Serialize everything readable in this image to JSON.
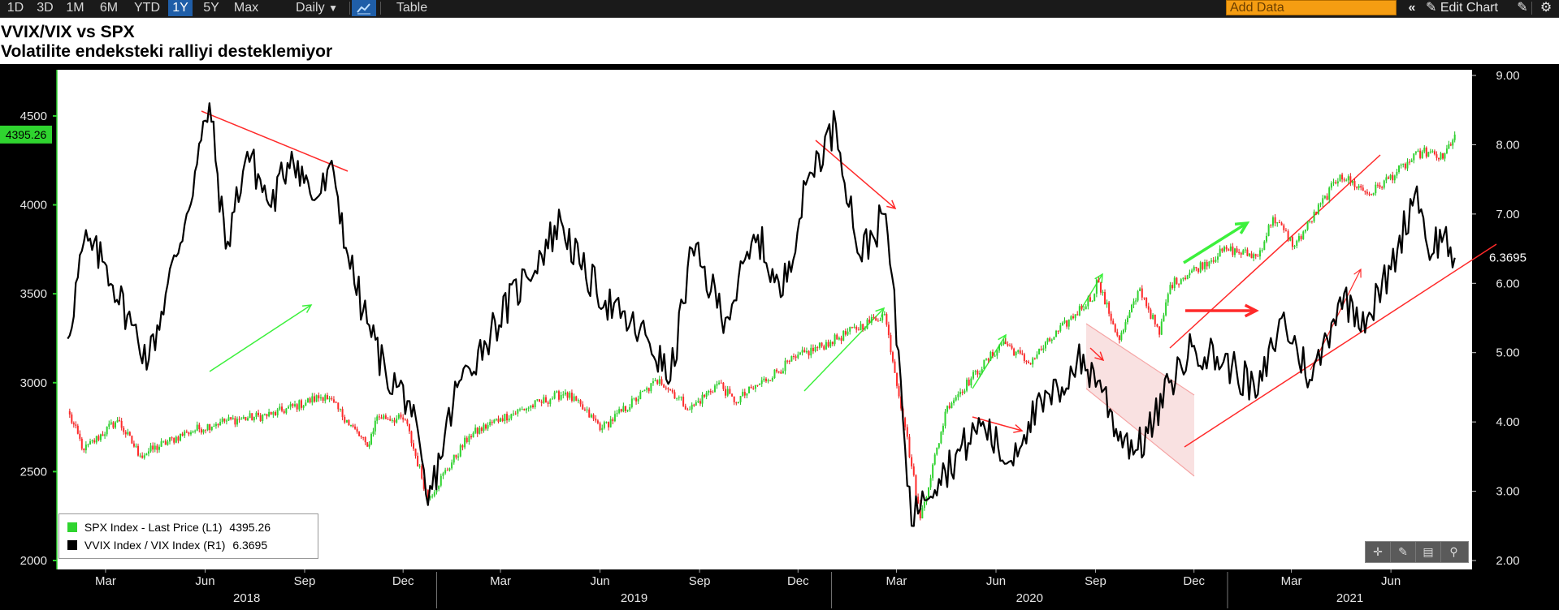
{
  "toolbar": {
    "ranges": [
      "1D",
      "3D",
      "1M",
      "6M",
      "YTD",
      "1Y",
      "5Y",
      "Max"
    ],
    "active_range": "1Y",
    "interval": "Daily",
    "interval_icon": "caret-down-icon",
    "chart_type_icon": "line-chart-icon",
    "table_label": "Table",
    "add_data_placeholder": "Add Data",
    "collapse_icon": "double-chevron-left-icon",
    "edit_chart_label": "Edit Chart",
    "edit_icon": "pencil-icon",
    "settings_icon": "gear-icon"
  },
  "chart_data": {
    "type": "line",
    "title": "VVIX/VIX vs SPX",
    "subtitle": "Volatilite endeksteki ralliyi desteklemiyor",
    "x_month_labels": [
      "Mar",
      "Jun",
      "Sep",
      "Dec",
      "Mar",
      "Jun",
      "Sep",
      "Dec",
      "Mar",
      "Jun",
      "Sep",
      "Dec",
      "Mar",
      "Jun"
    ],
    "x_year_labels": [
      "2018",
      "2019",
      "2020",
      "2021"
    ],
    "left_axis": {
      "ylim": [
        2000,
        4600
      ],
      "ticks": [
        "4500",
        "4000",
        "3500",
        "3000",
        "2500",
        "2000"
      ]
    },
    "right_axis": {
      "ylim": [
        2.0,
        9.0
      ],
      "ticks": [
        "9.00",
        "8.00",
        "7.00",
        "6.00",
        "5.00",
        "4.00",
        "3.00",
        "2.00"
      ]
    },
    "last_values": {
      "spx": "4395.26",
      "ratio": "6.3695"
    },
    "series": [
      {
        "name": "SPX Index - Last Price (L1)",
        "last": "4395.26",
        "axis": "left",
        "color": "#2fd42f",
        "points": [
          [
            "2018-01-25",
            2840
          ],
          [
            "2018-02-09",
            2620
          ],
          [
            "2018-03-12",
            2790
          ],
          [
            "2018-04-02",
            2590
          ],
          [
            "2018-05-15",
            2720
          ],
          [
            "2018-06-15",
            2780
          ],
          [
            "2018-08-01",
            2820
          ],
          [
            "2018-09-20",
            2930
          ],
          [
            "2018-10-10",
            2790
          ],
          [
            "2018-10-29",
            2640
          ],
          [
            "2018-11-07",
            2810
          ],
          [
            "2018-12-03",
            2790
          ],
          [
            "2018-12-24",
            2350
          ],
          [
            "2019-01-31",
            2700
          ],
          [
            "2019-03-01",
            2800
          ],
          [
            "2019-04-30",
            2945
          ],
          [
            "2019-06-03",
            2745
          ],
          [
            "2019-07-26",
            3020
          ],
          [
            "2019-08-23",
            2850
          ],
          [
            "2019-09-19",
            3000
          ],
          [
            "2019-10-03",
            2890
          ],
          [
            "2019-11-29",
            3140
          ],
          [
            "2019-12-31",
            3230
          ],
          [
            "2020-02-19",
            3386
          ],
          [
            "2020-03-09",
            2750
          ],
          [
            "2020-03-23",
            2237
          ],
          [
            "2020-04-17",
            2870
          ],
          [
            "2020-06-08",
            3230
          ],
          [
            "2020-07-01",
            3110
          ],
          [
            "2020-08-31",
            3500
          ],
          [
            "2020-09-02",
            3580
          ],
          [
            "2020-09-23",
            3240
          ],
          [
            "2020-10-12",
            3530
          ],
          [
            "2020-10-30",
            3270
          ],
          [
            "2020-11-09",
            3550
          ],
          [
            "2020-12-31",
            3750
          ],
          [
            "2021-01-29",
            3710
          ],
          [
            "2021-02-12",
            3930
          ],
          [
            "2021-03-04",
            3770
          ],
          [
            "2021-04-15",
            4170
          ],
          [
            "2021-05-12",
            4060
          ],
          [
            "2021-06-30",
            4300
          ],
          [
            "2021-07-19",
            4260
          ],
          [
            "2021-07-30",
            4395.26
          ]
        ]
      },
      {
        "name": "VVIX Index / VIX Index (R1)",
        "last": "6.3695",
        "axis": "right",
        "color": "#000000",
        "points": [
          [
            "2018-01-25",
            5.2
          ],
          [
            "2018-02-09",
            6.6
          ],
          [
            "2018-02-28",
            6.3
          ],
          [
            "2018-03-25",
            5.4
          ],
          [
            "2018-04-10",
            4.9
          ],
          [
            "2018-05-15",
            7.0
          ],
          [
            "2018-06-05",
            8.6
          ],
          [
            "2018-06-20",
            6.5
          ],
          [
            "2018-07-10",
            7.9
          ],
          [
            "2018-08-01",
            7.1
          ],
          [
            "2018-08-20",
            7.9
          ],
          [
            "2018-09-10",
            7.2
          ],
          [
            "2018-09-28",
            7.6
          ],
          [
            "2018-10-11",
            6.4
          ],
          [
            "2018-10-25",
            5.6
          ],
          [
            "2018-11-15",
            4.7
          ],
          [
            "2018-12-07",
            4.3
          ],
          [
            "2018-12-24",
            2.8
          ],
          [
            "2019-01-20",
            4.5
          ],
          [
            "2019-02-20",
            5.3
          ],
          [
            "2019-03-25",
            6.1
          ],
          [
            "2019-04-26",
            6.9
          ],
          [
            "2019-05-15",
            6.2
          ],
          [
            "2019-06-20",
            5.5
          ],
          [
            "2019-07-15",
            5.2
          ],
          [
            "2019-08-05",
            4.6
          ],
          [
            "2019-08-25",
            6.5
          ],
          [
            "2019-09-25",
            5.5
          ],
          [
            "2019-10-25",
            6.7
          ],
          [
            "2019-11-15",
            5.8
          ],
          [
            "2019-12-12",
            7.6
          ],
          [
            "2020-01-05",
            8.3
          ],
          [
            "2020-01-27",
            6.4
          ],
          [
            "2020-02-20",
            7.0
          ],
          [
            "2020-03-05",
            4.6
          ],
          [
            "2020-03-15",
            2.5
          ],
          [
            "2020-03-25",
            3.0
          ],
          [
            "2020-04-15",
            3.3
          ],
          [
            "2020-05-20",
            4.0
          ],
          [
            "2020-06-11",
            3.4
          ],
          [
            "2020-07-01",
            4.0
          ],
          [
            "2020-08-01",
            4.5
          ],
          [
            "2020-08-15",
            4.9
          ],
          [
            "2020-09-05",
            4.6
          ],
          [
            "2020-09-20",
            3.9
          ],
          [
            "2020-10-10",
            3.6
          ],
          [
            "2020-10-25",
            4.0
          ],
          [
            "2020-11-10",
            4.6
          ],
          [
            "2020-12-01",
            5.1
          ],
          [
            "2021-01-05",
            4.8
          ],
          [
            "2021-01-29",
            4.4
          ],
          [
            "2021-02-20",
            5.5
          ],
          [
            "2021-03-20",
            4.6
          ],
          [
            "2021-04-15",
            5.8
          ],
          [
            "2021-05-10",
            5.5
          ],
          [
            "2021-06-01",
            6.2
          ],
          [
            "2021-06-25",
            7.4
          ],
          [
            "2021-07-05",
            6.5
          ],
          [
            "2021-07-20",
            6.7
          ],
          [
            "2021-07-30",
            6.3695
          ]
        ]
      }
    ],
    "legend_position": "bottom-left",
    "grid": false
  },
  "legend": {
    "spx_label": "SPX Index - Last Price (L1)",
    "spx_value": "4395.26",
    "ratio_label": "VVIX Index / VIX Index (R1)",
    "ratio_value": "6.3695"
  },
  "annotations": {
    "colors": {
      "green": "#3cf03c",
      "red": "#ff2a2a",
      "shade": "#f4c9c9"
    }
  },
  "zoom_tools": [
    "crosshair-icon",
    "draw-icon",
    "table-icon",
    "zoom-icon"
  ]
}
